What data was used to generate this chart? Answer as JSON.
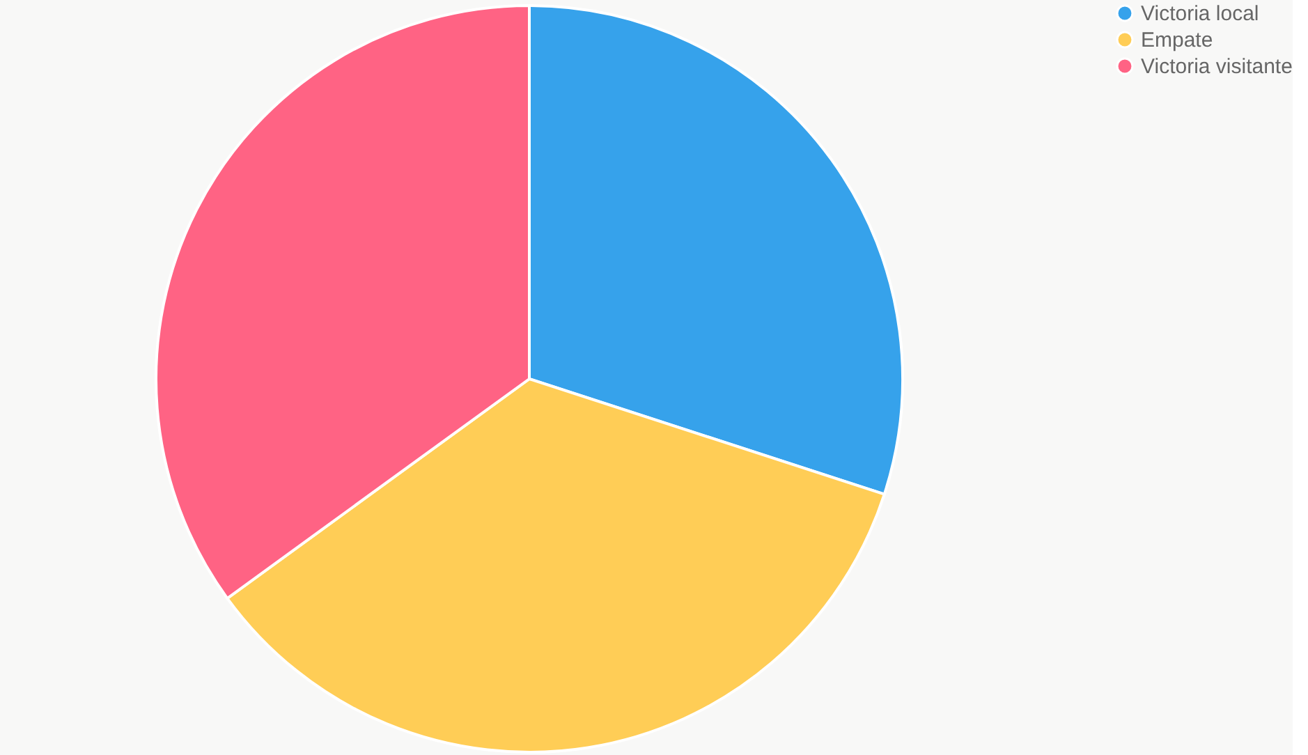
{
  "chart_data": {
    "type": "pie",
    "categories": [
      "Victoria local",
      "Empate",
      "Victoria visitante"
    ],
    "values": [
      30,
      35,
      35
    ],
    "colors": [
      "#36a2eb",
      "#ffcd56",
      "#ff6384"
    ],
    "legend": "right"
  }
}
